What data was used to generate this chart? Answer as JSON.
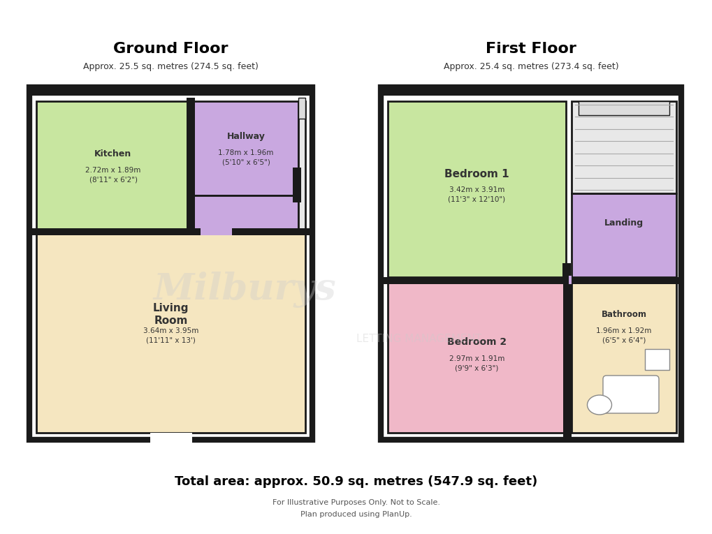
{
  "bg_color": "#f0f0f0",
  "wall_color": "#1a1a1a",
  "wall_lw": 3.5,
  "colors": {
    "kitchen": "#c8e6a0",
    "hallway": "#c9a8e0",
    "living_room": "#f5e6c0",
    "bedroom1": "#c8e6a0",
    "bedroom2": "#f0b8c8",
    "landing": "#c9a8e0",
    "bathroom": "#f5e6c0",
    "stairs": "#e8e8e8"
  },
  "ground_floor_title": "Ground Floor",
  "ground_floor_subtitle": "Approx. 25.5 sq. metres (274.5 sq. feet)",
  "first_floor_title": "First Floor",
  "first_floor_subtitle": "Approx. 25.4 sq. metres (273.4 sq. feet)",
  "total_area": "Total area: approx. 50.9 sq. metres (547.9 sq. feet)",
  "disclaimer1": "For Illustrative Purposes Only. Not to Scale.",
  "disclaimer2": "Plan produced using PlanUp.",
  "watermark": "Milburys",
  "watermark2": "LETTING MANAGEMENT",
  "rooms": {
    "kitchen": {
      "label": "Kitchen",
      "dims": "2.72m x 1.89m\n(8'11\" x 6'2\")"
    },
    "hallway": {
      "label": "Hallway",
      "dims": "1.78m x 1.96m\n(5'10\" x 6'5\")"
    },
    "living_room": {
      "label": "Living\nRoom",
      "dims": "3.64m x 3.95m\n(11'11\" x 13')"
    },
    "bedroom1": {
      "label": "Bedroom 1",
      "dims": "3.42m x 3.91m\n(11'3\" x 12'10\")"
    },
    "bedroom2": {
      "label": "Bedroom 2",
      "dims": "2.97m x 1.91m\n(9'9\" x 6'3\")"
    },
    "landing": {
      "label": "Landing",
      "dims": ""
    },
    "bathroom": {
      "label": "Bathroom",
      "dims": "1.96m x 1.92m\n(6'5\" x 6'4\")"
    }
  }
}
